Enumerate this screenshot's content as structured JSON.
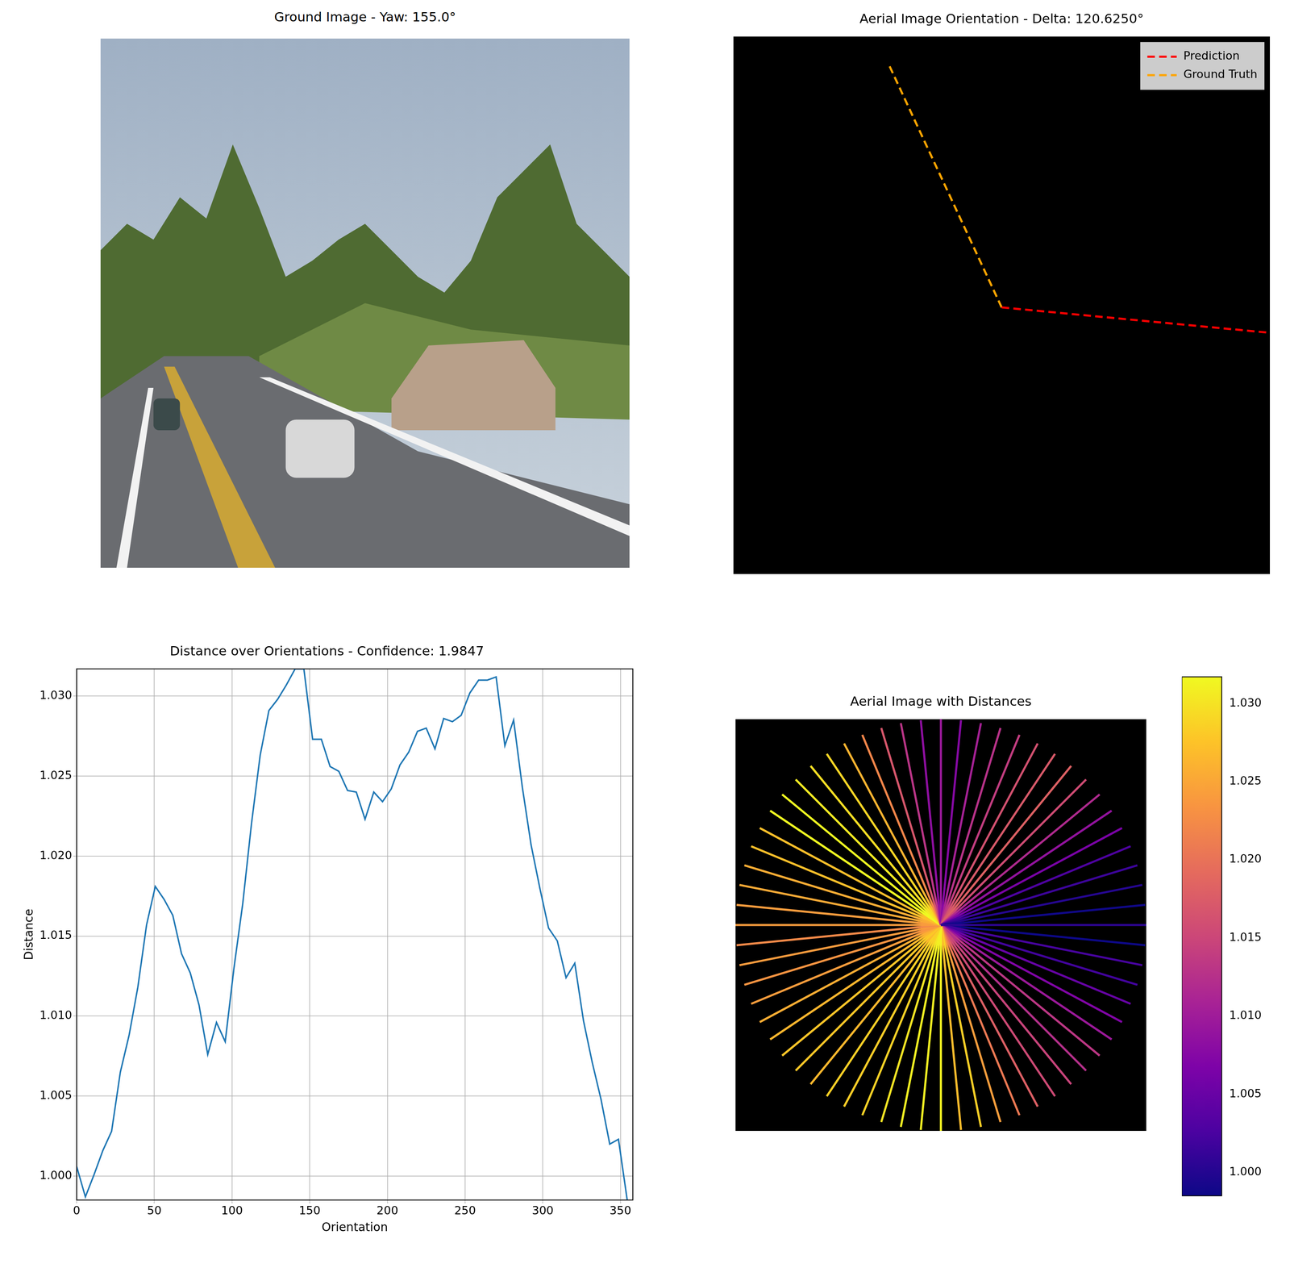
{
  "chart_data": [
    {
      "type": "image",
      "title": "Ground Image - Yaw: 155.0°"
    },
    {
      "type": "line",
      "title": "Aerial Image Orientation - Delta: 120.6250°",
      "tick_labels": false,
      "xlim": [
        0,
        256
      ],
      "ylim": [
        256,
        0
      ],
      "legend": "upper right",
      "series": [
        {
          "name": "Prediction",
          "color": "red",
          "line_style": "dashed",
          "x": [
            128,
            255
          ],
          "values": [
            129,
            141
          ]
        },
        {
          "name": "Ground Truth",
          "color": "orange",
          "line_style": "dashed",
          "x": [
            128,
            74
          ],
          "values": [
            129,
            13
          ]
        }
      ]
    },
    {
      "type": "line",
      "title": "Distance over Orientations - Confidence: 1.9847",
      "x_label": "Orientation",
      "y_label": "Distance",
      "color": "#1f77b4",
      "grid": true,
      "x": [
        0,
        5.625,
        11.25,
        16.875,
        22.5,
        28.125,
        33.75,
        39.375,
        45,
        50.625,
        56.25,
        61.875,
        67.5,
        73.125,
        78.75,
        84.375,
        90,
        95.625,
        101.25,
        106.875,
        112.5,
        118.125,
        123.75,
        129.375,
        135,
        140.625,
        146.25,
        151.875,
        157.5,
        163.125,
        168.75,
        174.375,
        180,
        185.625,
        191.25,
        196.875,
        202.5,
        208.125,
        213.75,
        219.375,
        225,
        230.625,
        236.25,
        241.875,
        247.5,
        253.125,
        258.75,
        264.375,
        270,
        275.625,
        281.25,
        286.875,
        292.5,
        298.125,
        303.75,
        309.375,
        315,
        320.625,
        326.25,
        331.875,
        337.5,
        343.125,
        348.75,
        354.375
      ],
      "values": [
        1.0006,
        0.9987,
        1.0001,
        1.0016,
        1.0028,
        1.0065,
        1.0088,
        1.0118,
        1.0157,
        1.0181,
        1.0173,
        1.0163,
        1.0139,
        1.0127,
        1.0107,
        1.0076,
        1.0096,
        1.0084,
        1.013,
        1.017,
        1.022,
        1.0263,
        1.0291,
        1.0298,
        1.0307,
        1.0317,
        1.0317,
        1.0273,
        1.0273,
        1.0256,
        1.0253,
        1.0241,
        1.024,
        1.0223,
        1.024,
        1.0234,
        1.0242,
        1.0257,
        1.0265,
        1.0278,
        1.028,
        1.0267,
        1.0286,
        1.0284,
        1.0288,
        1.0302,
        1.031,
        1.031,
        1.0312,
        1.0269,
        1.0285,
        1.0243,
        1.0207,
        1.018,
        1.0155,
        1.0147,
        1.0124,
        1.0133,
        1.0097,
        1.0071,
        1.0048,
        1.002,
        1.0023,
        0.9985
      ],
      "xlim": [
        0,
        358
      ],
      "xticks": [
        0,
        50,
        100,
        150,
        200,
        250,
        300,
        350
      ],
      "ylim": [
        0.9985,
        1.0317
      ],
      "yticks": [
        {
          "value": 1,
          "label": "1.000"
        },
        {
          "value": 1.005,
          "label": "1.005"
        },
        {
          "value": 1.01,
          "label": "1.010"
        },
        {
          "value": 1.015,
          "label": "1.015"
        },
        {
          "value": 1.02,
          "label": "1.020"
        },
        {
          "value": 1.025,
          "label": "1.025"
        },
        {
          "value": 1.03,
          "label": "1.030"
        }
      ]
    },
    {
      "type": "radial",
      "title": "Aerial Image with Distances",
      "tick_labels": false,
      "xlim": [
        0,
        256
      ],
      "ylim": [
        256,
        0
      ],
      "center": [
        128,
        128
      ],
      "radius": 128,
      "x": [
        0,
        5.625,
        11.25,
        16.875,
        22.5,
        28.125,
        33.75,
        39.375,
        45,
        50.625,
        56.25,
        61.875,
        67.5,
        73.125,
        78.75,
        84.375,
        90,
        95.625,
        101.25,
        106.875,
        112.5,
        118.125,
        123.75,
        129.375,
        135,
        140.625,
        146.25,
        151.875,
        157.5,
        163.125,
        168.75,
        174.375,
        180,
        185.625,
        191.25,
        196.875,
        202.5,
        208.125,
        213.75,
        219.375,
        225,
        230.625,
        236.25,
        241.875,
        247.5,
        253.125,
        258.75,
        264.375,
        270,
        275.625,
        281.25,
        286.875,
        292.5,
        298.125,
        303.75,
        309.375,
        315,
        320.625,
        326.25,
        331.875,
        337.5,
        343.125,
        348.75,
        354.375
      ],
      "values": [
        1.0006,
        0.9987,
        1.0001,
        1.0016,
        1.0028,
        1.0065,
        1.0088,
        1.0118,
        1.0157,
        1.0181,
        1.0173,
        1.0163,
        1.0139,
        1.0127,
        1.0107,
        1.0076,
        1.0096,
        1.0084,
        1.013,
        1.017,
        1.022,
        1.0263,
        1.0291,
        1.0298,
        1.0307,
        1.0317,
        1.0317,
        1.0273,
        1.0273,
        1.0256,
        1.0253,
        1.0241,
        1.024,
        1.0223,
        1.024,
        1.0234,
        1.0242,
        1.0257,
        1.0265,
        1.0278,
        1.028,
        1.0267,
        1.0286,
        1.0284,
        1.0288,
        1.0302,
        1.031,
        1.031,
        1.0312,
        1.0269,
        1.0285,
        1.0243,
        1.0207,
        1.018,
        1.0155,
        1.0147,
        1.0124,
        1.0133,
        1.0097,
        1.0071,
        1.0048,
        1.002,
        1.0023,
        0.9985
      ],
      "colorbar_range": [
        0.9985,
        1.0317
      ],
      "colorbar_ticks": [
        {
          "value": 1,
          "label": "1.000"
        },
        {
          "value": 1.005,
          "label": "1.005"
        },
        {
          "value": 1.01,
          "label": "1.010"
        },
        {
          "value": 1.015,
          "label": "1.015"
        },
        {
          "value": 1.02,
          "label": "1.020"
        },
        {
          "value": 1.025,
          "label": "1.025"
        },
        {
          "value": 1.03,
          "label": "1.030"
        }
      ]
    }
  ]
}
